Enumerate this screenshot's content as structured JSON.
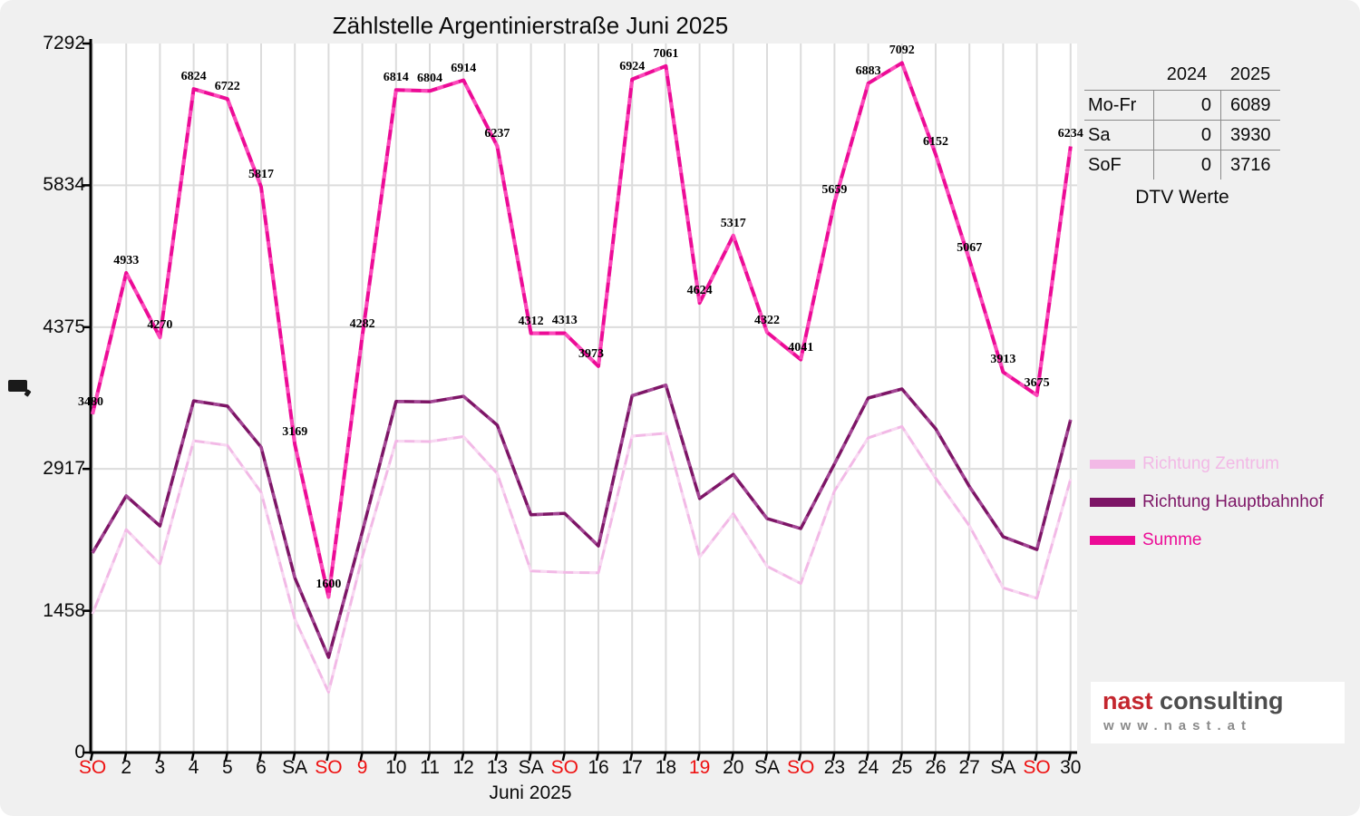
{
  "chart_data": {
    "type": "line",
    "title": "Zählstelle Argentinierstraße Juni 2025",
    "xlabel": "Juni 2025",
    "ylim": [
      0,
      7292
    ],
    "y_ticks": [
      0,
      1458,
      2917,
      4375,
      5834,
      7292
    ],
    "grid": true,
    "legend_position": "right",
    "x_tick_labels": [
      "SO",
      "2",
      "3",
      "4",
      "5",
      "6",
      "SA",
      "SO",
      "9",
      "10",
      "11",
      "12",
      "13",
      "SA",
      "SO",
      "16",
      "17",
      "18",
      "19",
      "20",
      "SA",
      "SO",
      "23",
      "24",
      "25",
      "26",
      "27",
      "SA",
      "SO",
      "30"
    ],
    "holiday_flags": [
      1,
      0,
      0,
      0,
      0,
      0,
      0,
      1,
      1,
      0,
      0,
      0,
      0,
      0,
      1,
      0,
      0,
      0,
      1,
      0,
      0,
      1,
      0,
      0,
      0,
      0,
      0,
      0,
      1,
      0
    ],
    "series": [
      {
        "name": "Richtung Zentrum",
        "color": "#f2b9e6",
        "stripe": "#f9ddf3",
        "width": 3,
        "values": [
          1427,
          2293,
          1940,
          3207,
          3159,
          2676,
          1372,
          621,
          2012,
          3203,
          3198,
          3250,
          2869,
          1867,
          1853,
          1848,
          3254,
          3283,
          2011,
          2456,
          1915,
          1738,
          2690,
          3237,
          3353,
          2822,
          2331,
          1694,
          1587,
          2812
        ]
      },
      {
        "name": "Richtung Hauptbahnhof",
        "color": "#7d1566",
        "stripe": "#a94f9c",
        "width": 3.5,
        "values": [
          2053,
          2640,
          2330,
          3617,
          3563,
          3141,
          1797,
          979,
          2270,
          3611,
          3606,
          3664,
          3368,
          2445,
          2460,
          2125,
          3670,
          3778,
          2613,
          2861,
          2407,
          2303,
          2969,
          3646,
          3739,
          3330,
          2736,
          2219,
          2088,
          3422
        ]
      },
      {
        "name": "Summe",
        "color": "#ec0b96",
        "stripe": "#ff55c1",
        "width": 4,
        "labeled": true,
        "values": [
          3480,
          4933,
          4270,
          6824,
          6722,
          5817,
          3169,
          1600,
          4282,
          6814,
          6804,
          6914,
          6237,
          4312,
          4313,
          3973,
          6924,
          7061,
          4624,
          5317,
          4322,
          4041,
          5659,
          6883,
          7092,
          6152,
          5067,
          3913,
          3675,
          6234
        ]
      }
    ],
    "label_dx": {
      "0": -2,
      "15": -8
    },
    "colors": {
      "holiday_red": "#ee1111",
      "grid": "#dcdcdc",
      "axis": "#000000",
      "plot_bg": "#ffffff",
      "page_bg": "#f0f0f0"
    }
  },
  "dtv_table": {
    "columns": [
      "2024",
      "2025"
    ],
    "rows": [
      {
        "label": "Mo-Fr",
        "y2024": "0",
        "y2025": "6089"
      },
      {
        "label": "Sa",
        "y2024": "0",
        "y2025": "3930"
      },
      {
        "label": "SoF",
        "y2024": "0",
        "y2025": "3716"
      }
    ],
    "caption": "DTV Werte"
  },
  "legend": {
    "items": [
      {
        "label": "Richtung Zentrum"
      },
      {
        "label": "Richtung Hauptbahnhof"
      },
      {
        "label": "Summe"
      }
    ]
  },
  "logo": {
    "brand_primary": "nast",
    "brand_secondary": "consulting",
    "url": "www.nast.at"
  }
}
